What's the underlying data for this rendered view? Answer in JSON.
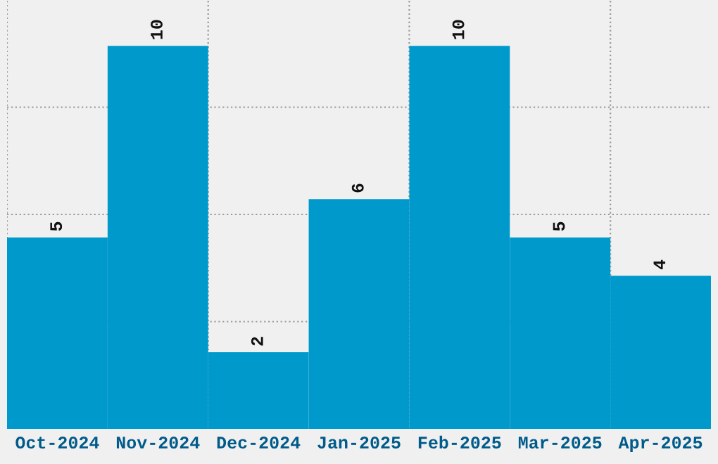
{
  "chart_data": {
    "type": "bar",
    "categories": [
      "Oct-2024",
      "Nov-2024",
      "Dec-2024",
      "Jan-2025",
      "Feb-2025",
      "Mar-2025",
      "Apr-2025"
    ],
    "values": [
      5,
      10,
      2,
      6,
      10,
      5,
      4
    ],
    "color": "#0099cc",
    "data_labels": true,
    "ylim": [
      0,
      11.2
    ],
    "yticks": [
      {
        "value": 2.8,
        "label": null
      },
      {
        "value": 5.6,
        "label": null
      },
      {
        "value": 8.4,
        "label": null
      }
    ],
    "grid": true,
    "legend": false
  }
}
